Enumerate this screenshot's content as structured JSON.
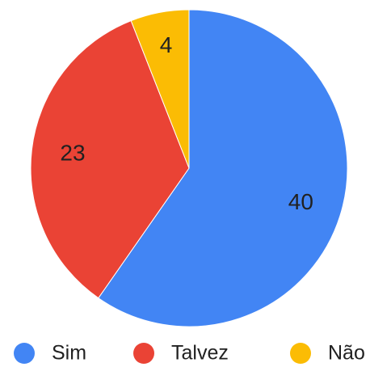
{
  "chart_data": {
    "type": "pie",
    "categories": [
      "Sim",
      "Talvez",
      "Não"
    ],
    "values": [
      40,
      23,
      4
    ],
    "colors": [
      "#4285f4",
      "#ea4335",
      "#fbbc04"
    ],
    "legend": "bottom"
  }
}
